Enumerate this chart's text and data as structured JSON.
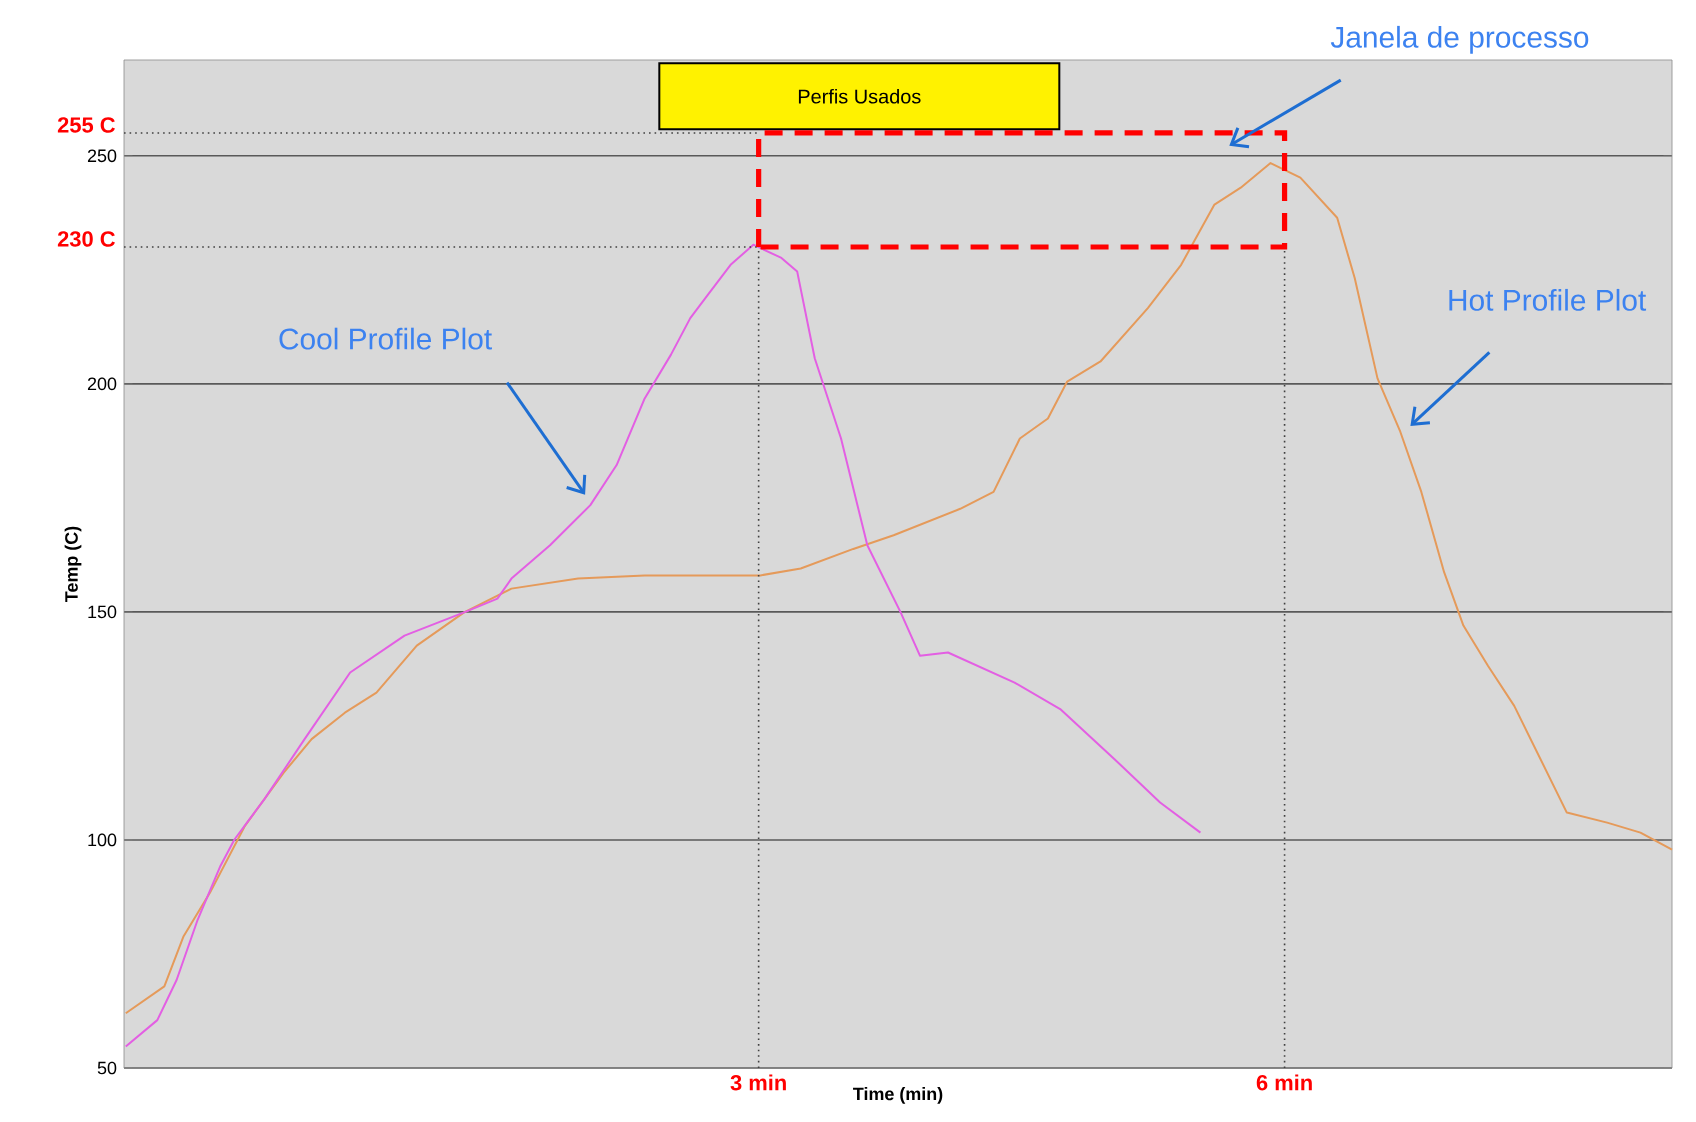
{
  "chart_data": {
    "type": "line",
    "title": "Perfis Usados",
    "xlabel": "Time (min)",
    "ylabel": "Temp (C)",
    "xlim": [
      -0.62,
      8.21
    ],
    "ylim": [
      50,
      271
    ],
    "yticks": [
      50,
      100,
      150,
      200,
      250
    ],
    "tick_labels": "y",
    "grid": "y",
    "marker": "none",
    "line_style": "solid",
    "series": [
      {
        "color": "#e35fe3",
        "x": [
          -0.61,
          -0.43,
          -0.32,
          -0.2,
          -0.07,
          0.01,
          0.18,
          0.41,
          0.67,
          0.98,
          1.32,
          1.51,
          1.59,
          1.81,
          2.04,
          2.19,
          2.35,
          2.5,
          2.61,
          2.71,
          2.84,
          2.97,
          3.13,
          3.22,
          3.32,
          3.47,
          3.62,
          3.81,
          3.92,
          4.08,
          4.46,
          4.72,
          5.03,
          5.29,
          5.52
        ],
        "values": [
          54.7,
          60.5,
          69.3,
          82.5,
          94.3,
          100.1,
          108.9,
          122.1,
          136.7,
          144.8,
          149.9,
          152.9,
          157.3,
          164.6,
          173.4,
          182.2,
          196.8,
          206.4,
          214.4,
          219.5,
          226.1,
          230.5,
          227.6,
          224.6,
          205.6,
          188.0,
          164.6,
          149.9,
          140.4,
          141.1,
          134.5,
          128.7,
          117.7,
          108.2,
          101.6
        ]
      },
      {
        "color": "#e59a5a",
        "x": [
          -0.61,
          -0.39,
          -0.28,
          -0.13,
          0.07,
          0.29,
          0.45,
          0.64,
          0.82,
          1.05,
          1.32,
          1.59,
          1.97,
          2.35,
          2.71,
          3.01,
          3.24,
          3.54,
          3.77,
          4.15,
          4.34,
          4.49,
          4.65,
          4.76,
          4.95,
          5.22,
          5.41,
          5.6,
          5.75,
          5.92,
          6.09,
          6.3,
          6.4,
          6.53,
          6.66,
          6.78,
          6.91,
          7.02,
          7.16,
          7.31,
          7.46,
          7.61,
          7.84,
          8.03,
          8.21
        ],
        "values": [
          62.0,
          67.9,
          78.9,
          88.4,
          103.1,
          114.7,
          122.1,
          127.9,
          132.3,
          142.6,
          149.9,
          155.1,
          157.3,
          158.0,
          158.0,
          158.0,
          159.5,
          163.8,
          166.8,
          172.6,
          176.3,
          188.0,
          192.4,
          200.5,
          204.9,
          216.6,
          226.1,
          239.3,
          243.0,
          248.4,
          245.2,
          236.4,
          223.2,
          201.2,
          189.5,
          176.3,
          158.7,
          147.0,
          138.2,
          129.4,
          117.7,
          106.0,
          103.8,
          101.6,
          97.9
        ]
      }
    ],
    "ref_lines": [
      {
        "axis": "x",
        "value": 3,
        "label": "3 min"
      },
      {
        "axis": "x",
        "value": 6,
        "label": "6 min"
      },
      {
        "axis": "y",
        "value": 255,
        "label": "255 C"
      },
      {
        "axis": "y",
        "value": 230,
        "label": "230 C"
      }
    ],
    "annotations": [
      {
        "text": "Cool Profile Plot",
        "x": 2.01,
        "y": 175.7
      },
      "Hot Profile Plot",
      "Janela de processo"
    ]
  }
}
